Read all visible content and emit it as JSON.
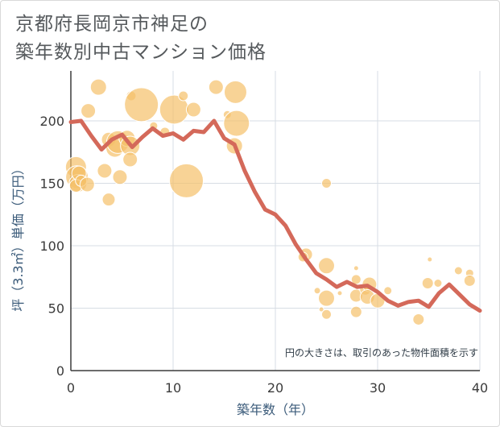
{
  "title_line1": "京都府長岡京市神足の",
  "title_line2": "築年数別中古マンション価格",
  "chart_data": {
    "type": "scatter",
    "title": "京都府長岡京市神足の 築年数別中古マンション価格",
    "xlabel": "築年数（年）",
    "ylabel": "坪（3.3㎡）単価（万円）",
    "xlim": [
      0,
      40
    ],
    "ylim": [
      0,
      240
    ],
    "x_ticks": [
      "0",
      "10",
      "20",
      "30",
      "40"
    ],
    "y_ticks": [
      "0",
      "50",
      "100",
      "150",
      "200"
    ],
    "x_tick_values": [
      0,
      10,
      20,
      30,
      40
    ],
    "y_tick_values": [
      0,
      50,
      100,
      150,
      200
    ],
    "grid": true,
    "note": "円の大きさは、取引のあった物件面積を示す",
    "colors": {
      "bubble": "#f5c06a",
      "line": "#d4695a",
      "grid": "#d7dde4"
    },
    "bubbles": [
      {
        "x": 0.5,
        "y": 163,
        "r": 13
      },
      {
        "x": 0.6,
        "y": 155,
        "r": 14
      },
      {
        "x": 0.7,
        "y": 150,
        "r": 11
      },
      {
        "x": 0.8,
        "y": 158,
        "r": 9
      },
      {
        "x": 0.5,
        "y": 148,
        "r": 8
      },
      {
        "x": 1.0,
        "y": 152,
        "r": 7
      },
      {
        "x": 1.6,
        "y": 149,
        "r": 9
      },
      {
        "x": 1.7,
        "y": 208,
        "r": 9
      },
      {
        "x": 2.7,
        "y": 227,
        "r": 10
      },
      {
        "x": 3.3,
        "y": 160,
        "r": 9
      },
      {
        "x": 3.7,
        "y": 185,
        "r": 9
      },
      {
        "x": 3.7,
        "y": 137,
        "r": 8
      },
      {
        "x": 4.3,
        "y": 178,
        "r": 11
      },
      {
        "x": 4.6,
        "y": 183,
        "r": 14
      },
      {
        "x": 4.8,
        "y": 155,
        "r": 9
      },
      {
        "x": 5.5,
        "y": 186,
        "r": 10
      },
      {
        "x": 5.8,
        "y": 180,
        "r": 12
      },
      {
        "x": 5.8,
        "y": 169,
        "r": 9
      },
      {
        "x": 5.9,
        "y": 220,
        "r": 6
      },
      {
        "x": 6.9,
        "y": 213,
        "r": 21
      },
      {
        "x": 8.1,
        "y": 196,
        "r": 5
      },
      {
        "x": 9.2,
        "y": 191,
        "r": 6
      },
      {
        "x": 10.1,
        "y": 209,
        "r": 18
      },
      {
        "x": 11.0,
        "y": 220,
        "r": 6
      },
      {
        "x": 12.0,
        "y": 209,
        "r": 9
      },
      {
        "x": 11.3,
        "y": 152,
        "r": 21
      },
      {
        "x": 14.2,
        "y": 227,
        "r": 9
      },
      {
        "x": 15.3,
        "y": 205,
        "r": 5
      },
      {
        "x": 16.1,
        "y": 223,
        "r": 14
      },
      {
        "x": 16.2,
        "y": 198,
        "r": 16
      },
      {
        "x": 16.0,
        "y": 180,
        "r": 10
      },
      {
        "x": 23.0,
        "y": 93,
        "r": 8
      },
      {
        "x": 22.7,
        "y": 91,
        "r": 6
      },
      {
        "x": 24.1,
        "y": 64,
        "r": 4
      },
      {
        "x": 24.5,
        "y": 49,
        "r": 3
      },
      {
        "x": 25.0,
        "y": 150,
        "r": 6
      },
      {
        "x": 25.0,
        "y": 84,
        "r": 10
      },
      {
        "x": 25.0,
        "y": 58,
        "r": 10
      },
      {
        "x": 25.0,
        "y": 45,
        "r": 6
      },
      {
        "x": 26.3,
        "y": 62,
        "r": 3
      },
      {
        "x": 27.9,
        "y": 82,
        "r": 3
      },
      {
        "x": 27.9,
        "y": 73,
        "r": 6
      },
      {
        "x": 27.9,
        "y": 60,
        "r": 8
      },
      {
        "x": 27.9,
        "y": 47,
        "r": 7
      },
      {
        "x": 28.8,
        "y": 65,
        "r": 7
      },
      {
        "x": 29.2,
        "y": 69,
        "r": 9
      },
      {
        "x": 29.0,
        "y": 59,
        "r": 9
      },
      {
        "x": 30.0,
        "y": 56,
        "r": 9
      },
      {
        "x": 31.0,
        "y": 64,
        "r": 5
      },
      {
        "x": 34.0,
        "y": 41,
        "r": 7
      },
      {
        "x": 34.9,
        "y": 70,
        "r": 7
      },
      {
        "x": 35.1,
        "y": 89,
        "r": 3
      },
      {
        "x": 35.9,
        "y": 70,
        "r": 5
      },
      {
        "x": 37.9,
        "y": 80,
        "r": 5
      },
      {
        "x": 39.0,
        "y": 78,
        "r": 5
      },
      {
        "x": 39.0,
        "y": 72,
        "r": 7
      }
    ],
    "average_line": {
      "x": [
        0,
        1,
        2,
        3,
        4,
        5,
        6,
        7,
        8,
        9,
        10,
        11,
        12,
        13,
        14,
        15,
        16,
        17,
        18,
        19,
        20,
        21,
        22,
        23,
        24,
        25,
        26,
        27,
        28,
        29,
        30,
        31,
        32,
        33,
        34,
        35,
        36,
        37,
        38,
        39,
        40
      ],
      "y": [
        199,
        200,
        188,
        177,
        185,
        189,
        179,
        187,
        194,
        188,
        190,
        185,
        192,
        191,
        200,
        186,
        181,
        160,
        143,
        129,
        125,
        116,
        101,
        89,
        78,
        73,
        67,
        71,
        67,
        68,
        63,
        56,
        52,
        55,
        56,
        51,
        62,
        69,
        61,
        53,
        48
      ]
    }
  }
}
